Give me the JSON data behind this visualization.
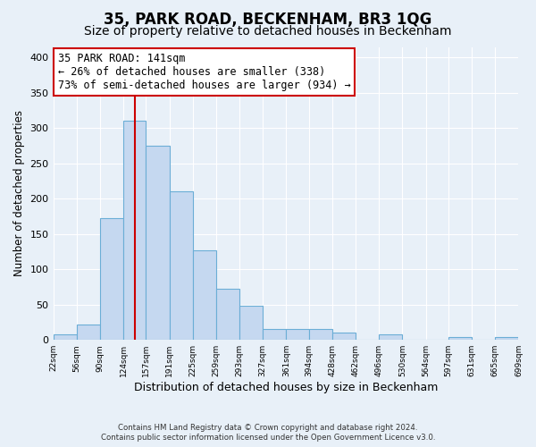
{
  "title": "35, PARK ROAD, BECKENHAM, BR3 1QG",
  "subtitle": "Size of property relative to detached houses in Beckenham",
  "xlabel": "Distribution of detached houses by size in Beckenham",
  "ylabel": "Number of detached properties",
  "bin_edges": [
    22,
    56,
    90,
    124,
    157,
    191,
    225,
    259,
    293,
    327,
    361,
    394,
    428,
    462,
    496,
    530,
    564,
    597,
    631,
    665,
    699
  ],
  "bin_labels": [
    "22sqm",
    "56sqm",
    "90sqm",
    "124sqm",
    "157sqm",
    "191sqm",
    "225sqm",
    "259sqm",
    "293sqm",
    "327sqm",
    "361sqm",
    "394sqm",
    "428sqm",
    "462sqm",
    "496sqm",
    "530sqm",
    "564sqm",
    "597sqm",
    "631sqm",
    "665sqm",
    "699sqm"
  ],
  "counts": [
    8,
    22,
    172,
    310,
    275,
    210,
    127,
    73,
    48,
    16,
    16,
    15,
    10,
    0,
    8,
    0,
    0,
    4,
    0,
    4
  ],
  "bar_color": "#c5d8f0",
  "bar_edge_color": "#6baed6",
  "property_size": 141,
  "vline_color": "#cc0000",
  "annotation_line1": "35 PARK ROAD: 141sqm",
  "annotation_line2": "← 26% of detached houses are smaller (338)",
  "annotation_line3": "73% of semi-detached houses are larger (934) →",
  "annotation_box_color": "#ffffff",
  "annotation_box_edge": "#cc0000",
  "ylim": [
    0,
    415
  ],
  "yticks": [
    0,
    50,
    100,
    150,
    200,
    250,
    300,
    350,
    400
  ],
  "background_color": "#e8f0f8",
  "footer_line1": "Contains HM Land Registry data © Crown copyright and database right 2024.",
  "footer_line2": "Contains public sector information licensed under the Open Government Licence v3.0.",
  "title_fontsize": 12,
  "subtitle_fontsize": 10,
  "annotation_fontsize": 8.5,
  "ylabel_fontsize": 8.5,
  "xlabel_fontsize": 9
}
